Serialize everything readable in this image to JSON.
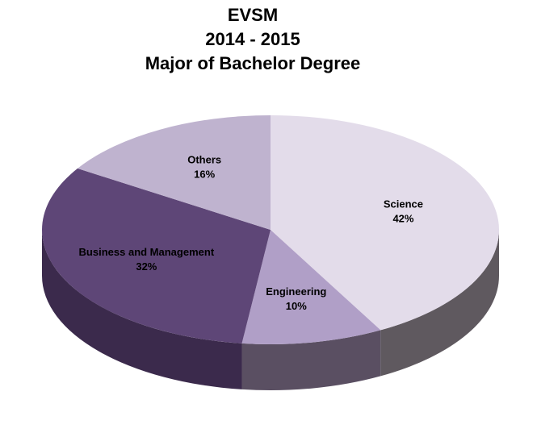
{
  "chart_data": {
    "type": "pie",
    "title": [
      "EVSM",
      "2014 - 2015",
      "Major of Bachelor Degree"
    ],
    "categories": [
      "Science",
      "Engineering",
      "Business and Management",
      "Others"
    ],
    "values": [
      42,
      10,
      32,
      16
    ],
    "value_labels": [
      "42%",
      "10%",
      "32%",
      "16%"
    ],
    "colors": [
      "#e3dcea",
      "#b09fc7",
      "#5e4677",
      "#bfb3cf"
    ],
    "side_colors": [
      "#5f595f",
      "#5a4f62",
      "#3b2a4c",
      "#6e6478"
    ]
  }
}
